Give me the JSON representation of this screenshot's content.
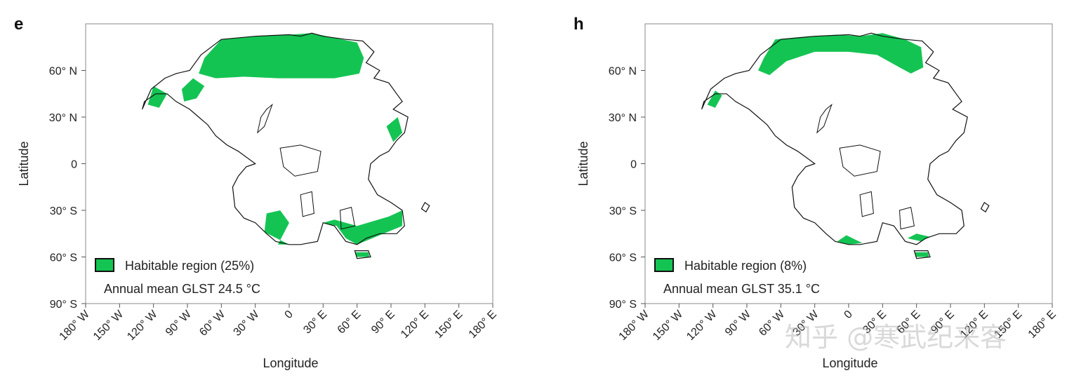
{
  "panels": [
    {
      "letter": "e",
      "legend_label": "Habitable region (25%)",
      "annotation": "Annual mean GLST 24.5 °C",
      "habitable_fraction_percent": 25,
      "glst_celsius": 24.5,
      "habitable": "e"
    },
    {
      "letter": "h",
      "legend_label": "Habitable region (8%)",
      "annotation": "Annual mean GLST 35.1 °C",
      "habitable_fraction_percent": 8,
      "glst_celsius": 35.1,
      "habitable": "h"
    }
  ],
  "axes": {
    "xlabel": "Longitude",
    "ylabel": "Latitude",
    "xlim": [
      -180,
      180
    ],
    "ylim": [
      -90,
      90
    ],
    "xticks": [
      {
        "value": -180,
        "label": "180° W"
      },
      {
        "value": -150,
        "label": "150° W"
      },
      {
        "value": -120,
        "label": "120° W"
      },
      {
        "value": -90,
        "label": "90° W"
      },
      {
        "value": -60,
        "label": "60° W"
      },
      {
        "value": -30,
        "label": "30° W"
      },
      {
        "value": 0,
        "label": "0"
      },
      {
        "value": 30,
        "label": "30° E"
      },
      {
        "value": 60,
        "label": "60° E"
      },
      {
        "value": 90,
        "label": "90° E"
      },
      {
        "value": 120,
        "label": "120° E"
      },
      {
        "value": 150,
        "label": "150° E"
      },
      {
        "value": 180,
        "label": "180° E"
      }
    ],
    "yticks": [
      {
        "value": 60,
        "label": "60° N"
      },
      {
        "value": 30,
        "label": "30° N"
      },
      {
        "value": 0,
        "label": "0"
      },
      {
        "value": -30,
        "label": "30° S"
      },
      {
        "value": -60,
        "label": "60° S"
      },
      {
        "value": -90,
        "label": "90° S"
      }
    ]
  },
  "colors": {
    "habitable": "#14c453",
    "coastline": "#111111",
    "frame": "#888888"
  },
  "watermark": "知乎 @寒武纪来客"
}
